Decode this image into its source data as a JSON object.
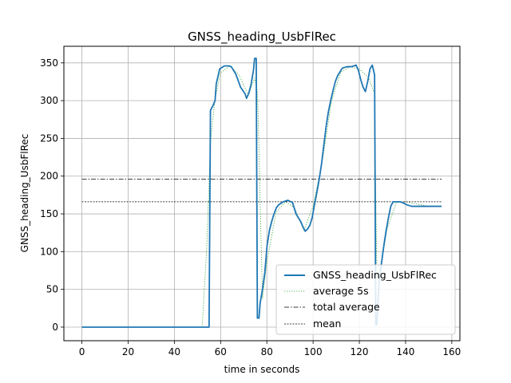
{
  "chart_data": {
    "type": "line",
    "title": "GNSS_heading_UsbFlRec",
    "xlabel": "time in seconds",
    "ylabel": "GNSS_heading_UsbFlRec",
    "xlim": [
      -7.8,
      163.5
    ],
    "ylim": [
      -18,
      372
    ],
    "xticks": [
      0,
      20,
      40,
      60,
      80,
      100,
      120,
      140,
      160
    ],
    "yticks": [
      0,
      50,
      100,
      150,
      200,
      250,
      300,
      350
    ],
    "grid": true,
    "legend_position": "lower right",
    "colors": {
      "main": "#1f77b4",
      "average": "#2ca02c",
      "lines": "#000000",
      "grid": "#b0b0b0"
    },
    "series": [
      {
        "name": "GNSS_heading_UsbFlRec",
        "style": "solid",
        "x": [
          0,
          10,
          20,
          30,
          40,
          50,
          54,
          55,
          55.6,
          56.6,
          57.6,
          58.1,
          59,
          59.6,
          60.6,
          61.6,
          62.6,
          63.6,
          64.6,
          66.6,
          68.6,
          70.6,
          71.2,
          72.2,
          73.2,
          74.2,
          74.7,
          75.4,
          75.9,
          76.6,
          77.1,
          78.1,
          79.1,
          80.1,
          81.1,
          82.1,
          83.1,
          84.1,
          85.1,
          87.1,
          89.1,
          91.1,
          92.6,
          94.6,
          95.6,
          96.6,
          97.6,
          98.6,
          99.6,
          100.6,
          101.6,
          102.6,
          103.6,
          104.6,
          105.6,
          106.6,
          107.6,
          108.6,
          109.6,
          110.6,
          111.6,
          112.6,
          114.6,
          116.6,
          118.6,
          119.6,
          120.6,
          121.6,
          122.6,
          123.6,
          124.6,
          125.6,
          126.6,
          127.1,
          127.6,
          128.1,
          128.6,
          129.6,
          130.6,
          131.6,
          132.6,
          133.6,
          134.6,
          135.6,
          136.6,
          137.6,
          138.6,
          140.6,
          142.6,
          144.6,
          146.6,
          150.6,
          155.6
        ],
        "y": [
          0,
          0,
          0,
          0,
          0,
          0,
          0,
          0,
          287,
          293,
          300,
          322,
          334,
          342,
          344,
          346,
          346,
          346,
          345,
          335,
          318,
          309,
          303,
          310,
          322,
          340,
          356,
          356,
          12,
          12,
          32,
          50,
          72,
          108,
          128,
          140,
          150,
          158,
          162,
          166,
          168,
          165,
          150,
          140,
          133,
          127,
          130,
          135,
          145,
          162,
          178,
          195,
          215,
          240,
          265,
          285,
          300,
          313,
          325,
          333,
          338,
          343,
          345,
          345,
          347,
          340,
          328,
          318,
          312,
          325,
          342,
          347,
          334,
          3,
          3,
          35,
          62,
          85,
          108,
          128,
          145,
          160,
          166,
          166,
          166,
          166,
          165,
          162,
          160,
          160,
          160,
          160,
          160
        ]
      },
      {
        "name": "average 5s",
        "style": "dotted",
        "x": [
          0,
          50,
          52,
          54,
          55.6,
          57.6,
          60,
          64,
          68,
          72,
          74.7,
          76,
          78.1,
          80,
          84,
          88,
          92,
          96,
          100,
          104,
          108,
          112,
          116,
          120,
          124,
          126.5,
          127.6,
          129.6,
          132,
          136,
          140,
          145,
          150,
          155.6
        ],
        "y": [
          0,
          0,
          0,
          105,
          245,
          303,
          337,
          346,
          334,
          307,
          330,
          310,
          38,
          86,
          152,
          166,
          158,
          128,
          160,
          220,
          300,
          338,
          345,
          342,
          330,
          310,
          66,
          86,
          130,
          165,
          166,
          163,
          160,
          160
        ]
      },
      {
        "name": "total average",
        "style": "dashdot",
        "x": [
          0,
          155.6
        ],
        "y": [
          196,
          196
        ]
      },
      {
        "name": "mean",
        "style": "dashed",
        "x": [
          0,
          155.6
        ],
        "y": [
          166,
          166
        ]
      }
    ]
  }
}
